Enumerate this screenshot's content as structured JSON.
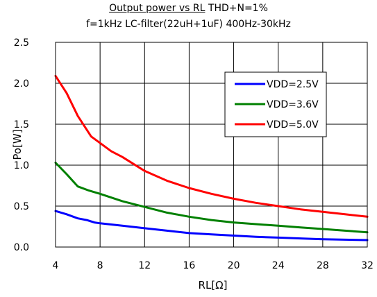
{
  "chart_data": {
    "type": "line",
    "title_main": "Output power vs RL",
    "title_condition": "THD+N=1%",
    "subtitle": "f=1kHz LC-filter(22uH+1uF) 400Hz-30kHz",
    "xlabel": "RL[Ω]",
    "ylabel": "Po[W]",
    "xlim": [
      4,
      32
    ],
    "ylim": [
      0,
      2.5
    ],
    "x_ticks": [
      4,
      8,
      12,
      16,
      20,
      24,
      28,
      32
    ],
    "y_ticks": [
      0.0,
      0.5,
      1.0,
      1.5,
      2.0,
      2.5
    ],
    "x_tick_labels": [
      "4",
      "8",
      "12",
      "16",
      "20",
      "24",
      "28",
      "32"
    ],
    "y_tick_labels": [
      "0.0",
      "0.5",
      "1.0",
      "1.5",
      "2.0",
      "2.5"
    ],
    "grid": true,
    "legend_position": "top-right",
    "series": [
      {
        "name": "VDD=2.5V",
        "color": "#0000ff",
        "x": [
          4,
          5,
          6,
          6.8,
          7.5,
          8,
          10,
          12,
          14,
          16,
          18,
          20,
          22,
          24,
          26,
          28,
          30,
          32
        ],
        "y": [
          0.44,
          0.4,
          0.35,
          0.33,
          0.3,
          0.29,
          0.26,
          0.23,
          0.2,
          0.17,
          0.155,
          0.14,
          0.125,
          0.115,
          0.105,
          0.095,
          0.09,
          0.085
        ]
      },
      {
        "name": "VDD=3.6V",
        "color": "#008000",
        "x": [
          4,
          5,
          6,
          7,
          8,
          10,
          12,
          14,
          16,
          18,
          20,
          22,
          24,
          26,
          28,
          30,
          32
        ],
        "y": [
          1.03,
          0.89,
          0.74,
          0.69,
          0.65,
          0.56,
          0.49,
          0.42,
          0.37,
          0.33,
          0.3,
          0.28,
          0.26,
          0.24,
          0.22,
          0.2,
          0.18
        ]
      },
      {
        "name": "VDD=5.0V",
        "color": "#ff0000",
        "x": [
          4,
          5,
          6,
          7.2,
          8,
          9,
          10,
          12,
          14,
          16,
          18,
          20,
          22,
          24,
          26,
          28,
          30,
          32
        ],
        "y": [
          2.09,
          1.88,
          1.6,
          1.35,
          1.27,
          1.17,
          1.1,
          0.93,
          0.81,
          0.72,
          0.65,
          0.59,
          0.54,
          0.5,
          0.46,
          0.43,
          0.4,
          0.37
        ]
      }
    ]
  }
}
